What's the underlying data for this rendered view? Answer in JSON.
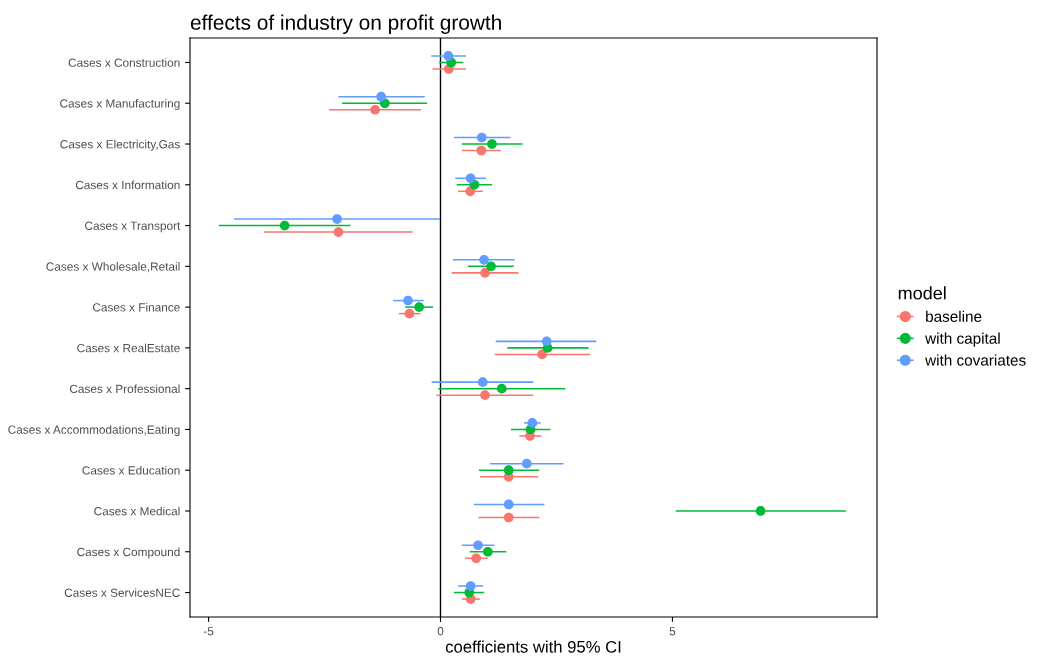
{
  "chart_data": {
    "type": "scatter",
    "orientation": "horizontal",
    "title": "effects of industry on profit growth",
    "xlabel": "coefficients with 95% CI",
    "legend_title": "model",
    "legend": "right",
    "grid": false,
    "marker": "circle",
    "categories": [
      "Cases x Construction",
      "Cases x Manufacturing",
      "Cases x Electricity,Gas",
      "Cases x Information",
      "Cases x Transport",
      "Cases x Wholesale,Retail",
      "Cases x Finance",
      "Cases x RealEstate",
      "Cases x Professional",
      "Cases x Accommodations,Eating",
      "Cases x Education",
      "Cases x Medical",
      "Cases x Compound",
      "Cases x ServicesNEC"
    ],
    "xlim": [
      -5.4,
      9.41
    ],
    "xticks": [
      -5,
      0,
      5
    ],
    "ref_lines": [
      {
        "axis": "x",
        "value": 0,
        "color": "#000000"
      }
    ],
    "series": [
      {
        "name": "baseline",
        "color": "#F8766D",
        "values": [
          0.18,
          -1.41,
          0.88,
          0.64,
          -2.2,
          0.96,
          -0.67,
          2.19,
          0.96,
          1.93,
          1.47,
          1.47,
          0.77,
          0.65
        ],
        "errors": [
          [
            -0.17,
            0.55
          ],
          [
            -2.4,
            -0.42
          ],
          [
            0.46,
            1.3
          ],
          [
            0.38,
            0.91
          ],
          [
            -3.81,
            -0.6
          ],
          [
            0.24,
            1.68
          ],
          [
            -0.9,
            -0.43
          ],
          [
            1.17,
            3.22
          ],
          [
            -0.09,
            2.0
          ],
          [
            1.7,
            2.18
          ],
          [
            0.85,
            2.11
          ],
          [
            0.82,
            2.13
          ],
          [
            0.53,
            1.02
          ],
          [
            0.46,
            0.85
          ]
        ]
      },
      {
        "name": "with capital",
        "color": "#00BA38",
        "values": [
          0.23,
          -1.2,
          1.11,
          0.73,
          -3.36,
          1.09,
          -0.46,
          2.31,
          1.32,
          1.94,
          1.47,
          6.9,
          1.02,
          0.62
        ],
        "errors": [
          [
            -0.03,
            0.49
          ],
          [
            -2.12,
            -0.29
          ],
          [
            0.46,
            1.77
          ],
          [
            0.35,
            1.11
          ],
          [
            -4.78,
            -1.94
          ],
          [
            0.59,
            1.58
          ],
          [
            -0.76,
            -0.16
          ],
          [
            1.44,
            3.19
          ],
          [
            -0.05,
            2.69
          ],
          [
            1.52,
            2.37
          ],
          [
            0.83,
            2.13
          ],
          [
            5.07,
            8.74
          ],
          [
            0.63,
            1.42
          ],
          [
            0.29,
            0.94
          ]
        ]
      },
      {
        "name": "with covariates",
        "color": "#619CFF",
        "values": [
          0.17,
          -1.28,
          0.89,
          0.65,
          -2.23,
          0.94,
          -0.7,
          2.29,
          0.91,
          1.98,
          1.86,
          1.47,
          0.81,
          0.65
        ],
        "errors": [
          [
            -0.2,
            0.55
          ],
          [
            -2.2,
            -0.34
          ],
          [
            0.29,
            1.51
          ],
          [
            0.32,
            0.98
          ],
          [
            -4.45,
            -0.01
          ],
          [
            0.27,
            1.6
          ],
          [
            -1.02,
            -0.36
          ],
          [
            1.19,
            3.36
          ],
          [
            -0.19,
            2.0
          ],
          [
            1.8,
            2.16
          ],
          [
            1.07,
            2.65
          ],
          [
            0.72,
            2.24
          ],
          [
            0.46,
            1.16
          ],
          [
            0.38,
            0.92
          ]
        ]
      }
    ]
  }
}
